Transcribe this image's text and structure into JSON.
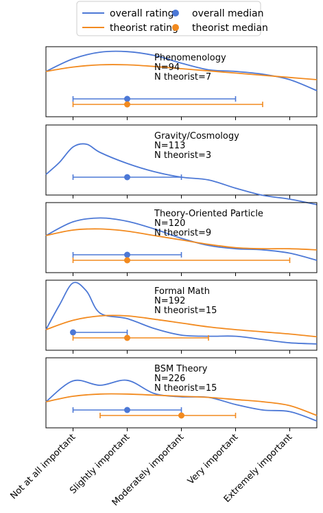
{
  "colors": {
    "overall": "#4c78d6",
    "theorist": "#f28a1f",
    "axis": "#000000",
    "background": "#ffffff"
  },
  "legend": {
    "placement": "top-center",
    "items": [
      {
        "label": "overall rating",
        "kind": "line",
        "series": "overall"
      },
      {
        "label": "overall median",
        "kind": "marker",
        "series": "overall"
      },
      {
        "label": "theorist rating",
        "kind": "line",
        "series": "theorist"
      },
      {
        "label": "theorist median",
        "kind": "marker",
        "series": "theorist"
      }
    ]
  },
  "chart_data": {
    "type": "line",
    "description_of_axes": {
      "x_categories": [
        "Not at all important",
        "Slightly important",
        "Moderately important",
        "Very important",
        "Extremely important"
      ],
      "xlim": [
        0.5,
        5.5
      ]
    },
    "panels": [
      {
        "title": "Phenomenology",
        "n_label": "N=94",
        "n_theorist_label": "N theorist=7",
        "overall_density": {
          "x": [
            0.5,
            1,
            1.5,
            2,
            2.5,
            3,
            3.5,
            4,
            4.5,
            5,
            5.5
          ],
          "y": [
            0.55,
            0.78,
            0.9,
            0.91,
            0.84,
            0.7,
            0.58,
            0.55,
            0.5,
            0.4,
            0.2
          ]
        },
        "theorist_density": {
          "x": [
            0.5,
            1,
            1.5,
            2,
            2.5,
            3,
            3.5,
            4,
            4.5,
            5,
            5.5
          ],
          "y": [
            0.55,
            0.63,
            0.67,
            0.67,
            0.64,
            0.6,
            0.56,
            0.52,
            0.48,
            0.44,
            0.4
          ]
        },
        "overall_median": {
          "median": 2,
          "low": 1,
          "high": 4
        },
        "theorist_median": {
          "median": 2,
          "low": 1,
          "high": 4.5
        }
      },
      {
        "title": "Gravity/Cosmology",
        "n_label": "N=113",
        "n_theorist_label": "N theorist=3",
        "overall_density": {
          "x": [
            0.5,
            0.75,
            1,
            1.25,
            1.5,
            2,
            2.5,
            3,
            3.5,
            4,
            4.5,
            5,
            5.5
          ],
          "y": [
            0.1,
            0.32,
            0.6,
            0.65,
            0.5,
            0.3,
            0.15,
            0.05,
            0.0,
            -0.15,
            -0.28,
            -0.35,
            -0.45
          ]
        },
        "theorist_density": null,
        "overall_median": {
          "median": 2,
          "low": 1,
          "high": 3
        },
        "theorist_median": null
      },
      {
        "title": "Theory-Oriented Particle",
        "n_label": "N=120",
        "n_theorist_label": "N theorist=9",
        "overall_density": {
          "x": [
            0.5,
            1,
            1.5,
            2,
            2.5,
            3,
            3.5,
            4,
            4.5,
            5,
            5.5
          ],
          "y": [
            0.4,
            0.65,
            0.72,
            0.66,
            0.52,
            0.35,
            0.22,
            0.16,
            0.14,
            0.08,
            -0.05
          ]
        },
        "theorist_density": {
          "x": [
            0.5,
            1,
            1.5,
            2,
            2.5,
            3,
            3.5,
            4,
            4.5,
            5,
            5.5
          ],
          "y": [
            0.4,
            0.5,
            0.52,
            0.48,
            0.4,
            0.32,
            0.24,
            0.18,
            0.16,
            0.16,
            0.14
          ]
        },
        "overall_median": {
          "median": 2,
          "low": 1,
          "high": 3
        },
        "theorist_median": {
          "median": 2,
          "low": 1,
          "high": 5
        }
      },
      {
        "title": "Formal Math",
        "n_label": "N=192",
        "n_theorist_label": "N theorist=15",
        "overall_density": {
          "x": [
            0.5,
            0.75,
            1,
            1.25,
            1.5,
            2,
            2.5,
            3,
            3.5,
            4,
            4.5,
            5,
            5.5
          ],
          "y": [
            0.1,
            0.55,
            0.95,
            0.8,
            0.4,
            0.3,
            0.12,
            0.0,
            -0.02,
            -0.02,
            -0.08,
            -0.14,
            -0.16
          ]
        },
        "theorist_density": {
          "x": [
            0.5,
            1,
            1.5,
            2,
            2.5,
            3,
            3.5,
            4,
            4.5,
            5,
            5.5
          ],
          "y": [
            0.1,
            0.27,
            0.35,
            0.35,
            0.29,
            0.22,
            0.15,
            0.1,
            0.06,
            0.02,
            -0.03
          ]
        },
        "overall_median": {
          "median": 1,
          "low": 1,
          "high": 2
        },
        "theorist_median": {
          "median": 2,
          "low": 1,
          "high": 3.5
        }
      },
      {
        "title": "BSM Theory",
        "n_label": "N=226",
        "n_theorist_label": "N theorist=15",
        "overall_density": {
          "x": [
            0.5,
            1,
            1.5,
            2,
            2.5,
            3,
            3.5,
            4,
            4.5,
            5,
            5.5
          ],
          "y": [
            0.2,
            0.58,
            0.5,
            0.59,
            0.35,
            0.29,
            0.28,
            0.15,
            0.05,
            0.02,
            -0.15
          ]
        },
        "theorist_density": {
          "x": [
            0.5,
            1,
            1.5,
            2,
            2.5,
            3,
            3.5,
            4,
            4.5,
            5,
            5.5
          ],
          "y": [
            0.2,
            0.3,
            0.34,
            0.34,
            0.32,
            0.3,
            0.28,
            0.24,
            0.2,
            0.13,
            -0.05
          ]
        },
        "overall_median": {
          "median": 2,
          "low": 1,
          "high": 3
        },
        "theorist_median": {
          "median": 3,
          "low": 1.5,
          "high": 4
        }
      }
    ]
  }
}
